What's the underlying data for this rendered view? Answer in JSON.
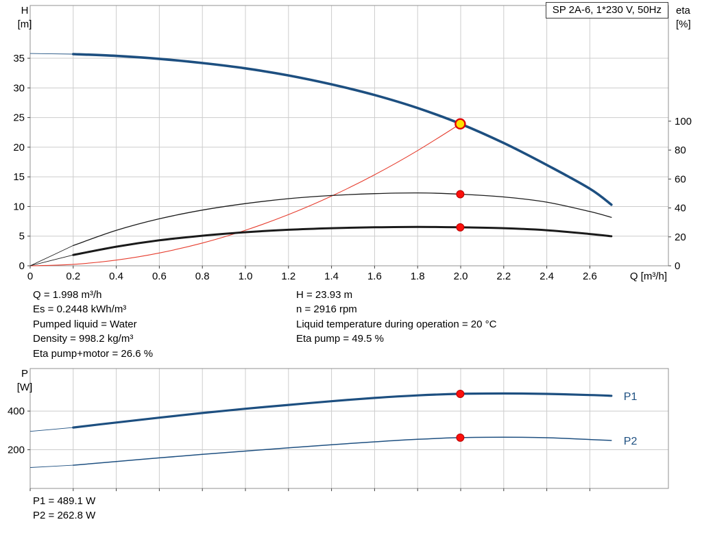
{
  "colors": {
    "curve_blue": "#1d4f80",
    "curve_black": "#1a1a1a",
    "curve_red": "#e63c2d",
    "marker_fill": "#fb100c",
    "marker_edge": "#b50000",
    "duty_fill": "#ffdf00",
    "duty_ring": "#e00000",
    "grid": "#cccccc",
    "border": "#909090",
    "tick": "#404040",
    "text": "#000000"
  },
  "info": {
    "left": [
      "Q = 1.998 m³/h",
      "Es = 0.2448 kWh/m³",
      "Pumped liquid = Water",
      "Density = 998.2 kg/m³",
      "Eta pump+motor = 26.6 %"
    ],
    "right": [
      "H = 23.93 m",
      "n = 2916 rpm",
      "Liquid temperature during operation = 20 °C",
      "Eta pump = 49.5 %"
    ]
  },
  "power_readout": [
    "P1 = 489.1 W",
    "P2 = 262.8 W"
  ],
  "chart_data": [
    {
      "type": "line",
      "title": "SP 2A-6, 1*230 V, 50Hz",
      "axes": {
        "x": {
          "label": "Q [m³/h]",
          "ticks": [
            0,
            0.2,
            0.4,
            0.6,
            0.8,
            1,
            1.2,
            1.4,
            1.6,
            1.8,
            2,
            2.2,
            2.4,
            2.6
          ],
          "max": 2.965
        },
        "y_left": {
          "label_lines": [
            "H",
            "[m]"
          ],
          "ticks": [
            0,
            5,
            10,
            15,
            20,
            25,
            30,
            35
          ],
          "max": 43.9
        },
        "y_right": {
          "label_lines": [
            "eta",
            "[%]"
          ],
          "ticks": [
            0,
            20,
            40,
            60,
            80,
            100
          ],
          "max": 180
        }
      },
      "series": [
        {
          "name": "head-curve",
          "axis": "left",
          "color_key": "curve_blue",
          "width": 3.6,
          "thin_until": 0.2,
          "points": [
            [
              0,
              35.8
            ],
            [
              0.2,
              35.7
            ],
            [
              0.4,
              35.4
            ],
            [
              0.6,
              34.9
            ],
            [
              0.8,
              34.2
            ],
            [
              1,
              33.3
            ],
            [
              1.2,
              32.1
            ],
            [
              1.4,
              30.6
            ],
            [
              1.6,
              28.8
            ],
            [
              1.8,
              26.6
            ],
            [
              2,
              23.93
            ],
            [
              2.2,
              20.7
            ],
            [
              2.4,
              17
            ],
            [
              2.6,
              13
            ],
            [
              2.7,
              10.3
            ]
          ]
        },
        {
          "name": "system-curve",
          "axis": "left",
          "color_key": "curve_red",
          "width": 1.1,
          "points": [
            [
              0,
              0
            ],
            [
              0.2,
              0.24
            ],
            [
              0.4,
              0.96
            ],
            [
              0.6,
              2.16
            ],
            [
              0.8,
              3.84
            ],
            [
              1,
              6
            ],
            [
              1.2,
              8.63
            ],
            [
              1.4,
              11.75
            ],
            [
              1.6,
              15.35
            ],
            [
              1.8,
              19.43
            ],
            [
              1.998,
              23.93
            ]
          ]
        },
        {
          "name": "eta-pump-curve",
          "axis": "right",
          "color_key": "curve_black",
          "width": 1.3,
          "thin_until": 0.2,
          "points": [
            [
              0,
              0
            ],
            [
              0.2,
              14
            ],
            [
              0.4,
              24.5
            ],
            [
              0.6,
              32.5
            ],
            [
              0.8,
              38.5
            ],
            [
              1,
              43
            ],
            [
              1.2,
              46.4
            ],
            [
              1.4,
              48.6
            ],
            [
              1.6,
              49.9
            ],
            [
              1.8,
              50.4
            ],
            [
              2,
              49.5
            ],
            [
              2.2,
              47.6
            ],
            [
              2.4,
              44
            ],
            [
              2.6,
              37.5
            ],
            [
              2.7,
              33.5
            ]
          ]
        },
        {
          "name": "eta-pump-motor-curve",
          "axis": "right",
          "color_key": "curve_black",
          "width": 3,
          "thin_until": 0.2,
          "points": [
            [
              0,
              0
            ],
            [
              0.2,
              7.5
            ],
            [
              0.4,
              13.2
            ],
            [
              0.6,
              17.6
            ],
            [
              0.8,
              20.8
            ],
            [
              1,
              23.2
            ],
            [
              1.2,
              24.9
            ],
            [
              1.4,
              26
            ],
            [
              1.6,
              26.6
            ],
            [
              1.8,
              26.9
            ],
            [
              2,
              26.6
            ],
            [
              2.2,
              26
            ],
            [
              2.4,
              24.6
            ],
            [
              2.6,
              22
            ],
            [
              2.7,
              20.4
            ]
          ]
        }
      ],
      "markers": [
        {
          "name": "duty-point-head",
          "q": 1.998,
          "v": 23.93,
          "axis": "left",
          "style": "duty"
        },
        {
          "name": "duty-point-eta-pump",
          "q": 1.998,
          "v": 49.5,
          "axis": "right",
          "style": "dot"
        },
        {
          "name": "duty-point-eta-pump-motor",
          "q": 1.998,
          "v": 26.6,
          "axis": "right",
          "style": "dot"
        }
      ]
    },
    {
      "type": "line",
      "axes": {
        "x": {
          "ticks": [
            0,
            0.2,
            0.4,
            0.6,
            0.8,
            1,
            1.2,
            1.4,
            1.6,
            1.8,
            2,
            2.2,
            2.4,
            2.6
          ],
          "max": 2.965
        },
        "y_left": {
          "label_lines": [
            "P",
            "[W]"
          ],
          "ticks": [
            200,
            400
          ],
          "max": 620
        }
      },
      "series": [
        {
          "name": "p1-curve",
          "label": "P1",
          "axis": "left",
          "color_key": "curve_blue",
          "width": 3.2,
          "thin_until": 0.2,
          "points": [
            [
              0,
              295
            ],
            [
              0.2,
              315
            ],
            [
              0.4,
              341
            ],
            [
              0.6,
              366
            ],
            [
              0.8,
              390
            ],
            [
              1,
              412
            ],
            [
              1.2,
              432
            ],
            [
              1.4,
              451
            ],
            [
              1.6,
              468
            ],
            [
              1.8,
              481
            ],
            [
              2,
              489.1
            ],
            [
              2.2,
              491
            ],
            [
              2.4,
              489
            ],
            [
              2.6,
              483
            ],
            [
              2.7,
              479
            ]
          ]
        },
        {
          "name": "p2-curve",
          "label": "P2",
          "axis": "left",
          "color_key": "curve_blue",
          "width": 1.5,
          "thin_until": 0.2,
          "points": [
            [
              0,
              108
            ],
            [
              0.2,
              120
            ],
            [
              0.4,
              139
            ],
            [
              0.6,
              158
            ],
            [
              0.8,
              176
            ],
            [
              1,
              193
            ],
            [
              1.2,
              210
            ],
            [
              1.4,
              226
            ],
            [
              1.6,
              241
            ],
            [
              1.8,
              254
            ],
            [
              2,
              262.8
            ],
            [
              2.2,
              265
            ],
            [
              2.4,
              262
            ],
            [
              2.6,
              253
            ],
            [
              2.7,
              248
            ]
          ]
        }
      ],
      "markers": [
        {
          "name": "duty-point-p1",
          "q": 1.998,
          "v": 489.1,
          "style": "dot"
        },
        {
          "name": "duty-point-p2",
          "q": 1.998,
          "v": 262.8,
          "style": "dot"
        }
      ]
    }
  ]
}
